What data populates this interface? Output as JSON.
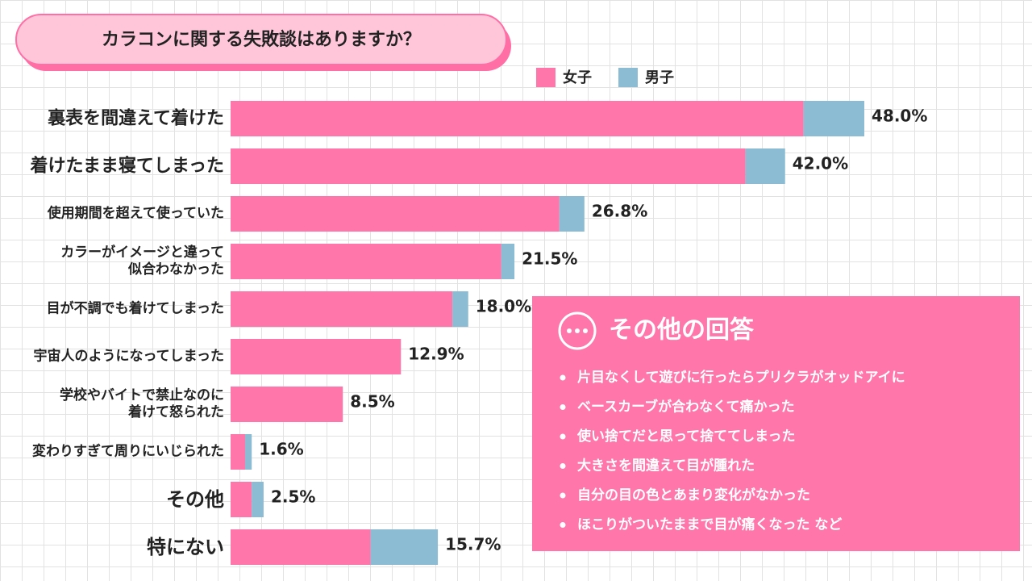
{
  "chart_data": {
    "type": "bar",
    "orientation": "horizontal",
    "stacked": true,
    "title": "カラコンに関する失敗談はありますか？",
    "categories": [
      "裏表を間違えて着けた",
      "着けたまま寝てしまった",
      "使用期間を超えて使っていた",
      "カラーがイメージと違って\n似合わなかった",
      "目が不調でも着けてしまった",
      "宇宙人のようになってしまった",
      "学校やバイトで禁止なのに\n着けて怒られた",
      "変わりすぎて周りにいじられた",
      "その他",
      "特にない"
    ],
    "series": [
      {
        "name": "女子",
        "color": "#ff77aa",
        "values": [
          43.4,
          39.0,
          24.9,
          20.5,
          16.8,
          12.9,
          8.5,
          1.1,
          1.6,
          10.6
        ]
      },
      {
        "name": "男子",
        "color": "#8bbcd3",
        "values": [
          4.6,
          3.0,
          1.9,
          1.0,
          1.2,
          0,
          0,
          0.5,
          0.9,
          5.1
        ]
      }
    ],
    "totals": [
      48.0,
      42.0,
      26.8,
      21.5,
      18.0,
      12.9,
      8.5,
      1.6,
      2.5,
      15.7
    ],
    "total_labels": [
      "48.0%",
      "42.0%",
      "26.8%",
      "21.5%",
      "18.0%",
      "12.9%",
      "8.5%",
      "1.6%",
      "2.5%",
      "15.7%"
    ],
    "legend": "top"
  },
  "note_box": {
    "title": "その他の回答",
    "items": [
      "片目なくして遊びに行ったらプリクラがオッドアイに",
      "ベースカーブが合わなくて痛かった",
      "使い捨てだと思って捨ててしまった",
      "大きさを間違えて目が腫れた",
      "自分の目の色とあまり変化がなかった",
      "ほこりがついたままで目が痛くなった など"
    ]
  }
}
